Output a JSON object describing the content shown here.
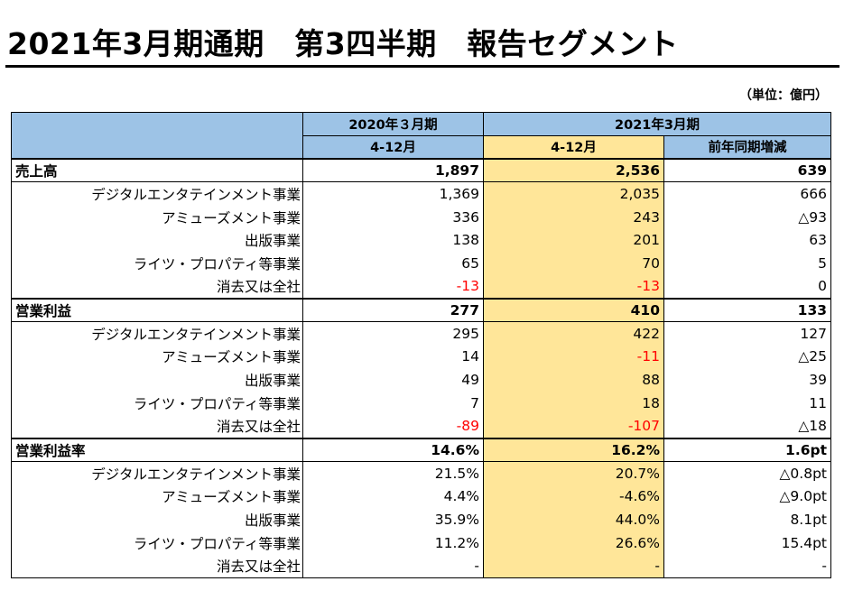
{
  "header": {
    "title": "2021年3月期通期　第3四半期　報告セグメント",
    "unit": "（単位：億円）"
  },
  "columns": {
    "year_prev": "2020年３月期",
    "year_curr": "2021年3月期",
    "period_prev": "4-12月",
    "period_curr": "4-12月",
    "yoy": "前年同期増減"
  },
  "sections": [
    {
      "label": "売上高",
      "prev": "1,897",
      "curr": "2,536",
      "diff": "639",
      "rows": [
        {
          "label": "デジタルエンタテインメント事業",
          "prev": "1,369",
          "curr": "2,035",
          "diff": "666"
        },
        {
          "label": "アミューズメント事業",
          "prev": "336",
          "curr": "243",
          "diff": "△93"
        },
        {
          "label": "出版事業",
          "prev": "138",
          "curr": "201",
          "diff": "63"
        },
        {
          "label": "ライツ・プロパティ等事業",
          "prev": "65",
          "curr": "70",
          "diff": "5"
        },
        {
          "label": "消去又は全社",
          "prev": "-13",
          "curr": "-13",
          "diff": "0"
        }
      ]
    },
    {
      "label": "営業利益",
      "prev": "277",
      "curr": "410",
      "diff": "133",
      "rows": [
        {
          "label": "デジタルエンタテインメント事業",
          "prev": "295",
          "curr": "422",
          "diff": "127"
        },
        {
          "label": "アミューズメント事業",
          "prev": "14",
          "curr": "-11",
          "diff": "△25"
        },
        {
          "label": "出版事業",
          "prev": "49",
          "curr": "88",
          "diff": "39"
        },
        {
          "label": "ライツ・プロパティ等事業",
          "prev": "7",
          "curr": "18",
          "diff": "11"
        },
        {
          "label": "消去又は全社",
          "prev": "-89",
          "curr": "-107",
          "diff": "△18"
        }
      ]
    },
    {
      "label": "営業利益率",
      "prev": "14.6%",
      "curr": "16.2%",
      "diff": "1.6pt",
      "rows": [
        {
          "label": "デジタルエンタテインメント事業",
          "prev": "21.5%",
          "curr": "20.7%",
          "diff": "△0.8pt"
        },
        {
          "label": "アミューズメント事業",
          "prev": "4.4%",
          "curr": "-4.6%",
          "diff": "△9.0pt"
        },
        {
          "label": "出版事業",
          "prev": "35.9%",
          "curr": "44.0%",
          "diff": "8.1pt"
        },
        {
          "label": "ライツ・プロパティ等事業",
          "prev": "11.2%",
          "curr": "26.6%",
          "diff": "15.4pt"
        },
        {
          "label": "消去又は全社",
          "prev": "-",
          "curr": "-",
          "diff": "-"
        }
      ]
    }
  ],
  "colors": {
    "header_blue": "#9dc3e6",
    "highlight_yellow": "#ffe699",
    "negative_red": "#ff0000"
  }
}
